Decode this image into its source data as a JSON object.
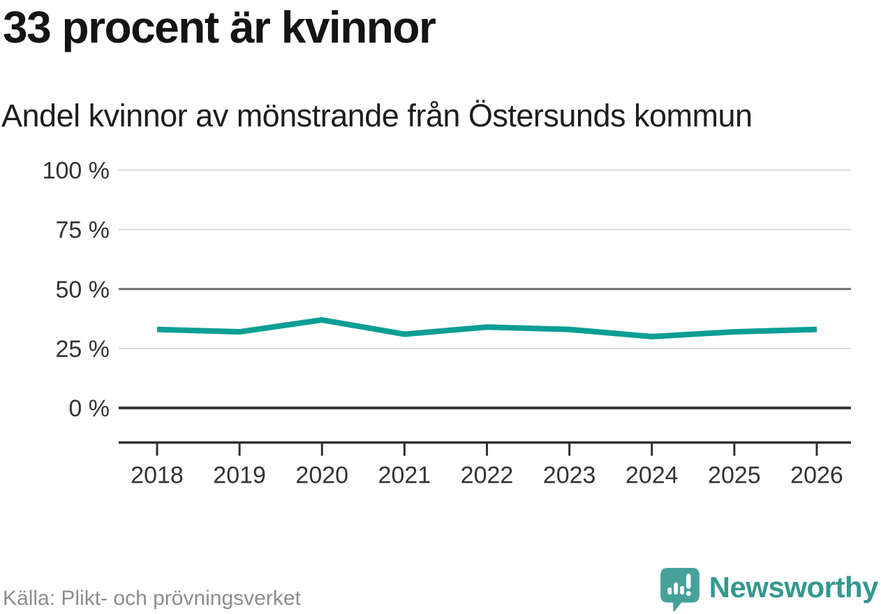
{
  "header": {
    "title": "33 procent är kvinnor",
    "subtitle": "Andel kvinnor av mönstrande från Östersunds kommun"
  },
  "chart_data": {
    "type": "line",
    "title": "33 procent är kvinnor",
    "subtitle": "Andel kvinnor av mönstrande från Östersunds kommun",
    "x": [
      2018,
      2019,
      2020,
      2021,
      2022,
      2023,
      2024,
      2025,
      2026
    ],
    "series": [
      {
        "name": "Andel kvinnor av mönstrande",
        "values": [
          33,
          32,
          37,
          31,
          34,
          33,
          30,
          32,
          33
        ]
      }
    ],
    "unit": "%",
    "ylim": [
      0,
      100
    ],
    "yticks": [
      0,
      25,
      50,
      75,
      100
    ],
    "ytick_suffix": " %",
    "grid": "horizontal",
    "emphasized_gridline": 50,
    "legend": "none",
    "line_color": "#0a9e94"
  },
  "footer": {
    "source": "Källa: Plikt- och prövningsverket",
    "brand": "Newsworthy"
  },
  "colors": {
    "title": "#141414",
    "subtitle": "#1d1d1d",
    "axis_text": "#333333",
    "grid_light": "#dcdcdc",
    "grid_mid": "#6b6b6b",
    "grid_zero": "#3a3a3a",
    "axis_line": "#303030",
    "line": "#0a9e94",
    "source_text": "#8d8d8d",
    "logo_icon": "#45a29b",
    "logo_text": "#35988f"
  }
}
